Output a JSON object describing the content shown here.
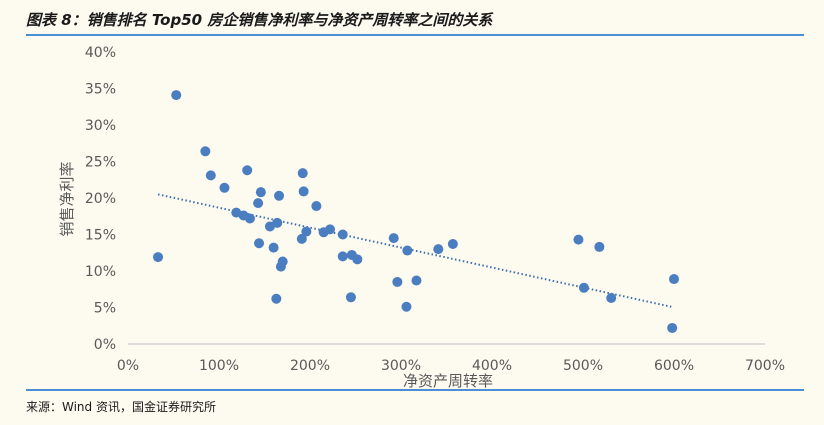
{
  "title": "图表 8：销售排名 Top50 房企销售净利率与净资产周转率之间的关系",
  "source": "来源：Wind 资讯，国金证券研究所",
  "colors": {
    "point": "#4a7ec0",
    "trend": "#3c6fae",
    "rule": "#4a8fd6",
    "axis": "#bfbfbf",
    "text": "#595959"
  },
  "chart_data": {
    "type": "scatter",
    "title": "",
    "xlabel": "净资产周转率",
    "ylabel": "销售净利率",
    "xlim": [
      0,
      700
    ],
    "ylim": [
      0,
      40
    ],
    "x_ticks": [
      "0%",
      "100%",
      "200%",
      "300%",
      "400%",
      "500%",
      "600%",
      "700%"
    ],
    "y_ticks": [
      "0%",
      "5%",
      "10%",
      "15%",
      "20%",
      "25%",
      "30%",
      "35%",
      "40%"
    ],
    "grid": false,
    "trendline": {
      "type": "linear",
      "start": [
        33,
        20.5
      ],
      "end": [
        597,
        5.1
      ],
      "style": "dotted"
    },
    "points": [
      [
        33,
        11.9
      ],
      [
        53,
        34.1
      ],
      [
        85,
        26.4
      ],
      [
        91,
        23.1
      ],
      [
        106,
        21.4
      ],
      [
        119,
        18.0
      ],
      [
        127,
        17.6
      ],
      [
        131,
        23.8
      ],
      [
        134,
        17.2
      ],
      [
        143,
        19.3
      ],
      [
        144,
        13.8
      ],
      [
        146,
        20.8
      ],
      [
        156,
        16.1
      ],
      [
        160,
        13.2
      ],
      [
        163,
        6.2
      ],
      [
        164,
        16.6
      ],
      [
        166,
        20.3
      ],
      [
        168,
        10.6
      ],
      [
        170,
        11.3
      ],
      [
        191,
        14.4
      ],
      [
        192,
        23.4
      ],
      [
        193,
        20.9
      ],
      [
        196,
        15.4
      ],
      [
        207,
        18.9
      ],
      [
        215,
        15.3
      ],
      [
        222,
        15.7
      ],
      [
        236,
        15.0
      ],
      [
        236,
        12.0
      ],
      [
        245,
        6.4
      ],
      [
        246,
        12.2
      ],
      [
        252,
        11.6
      ],
      [
        292,
        14.5
      ],
      [
        296,
        8.5
      ],
      [
        306,
        5.1
      ],
      [
        307,
        12.8
      ],
      [
        317,
        8.7
      ],
      [
        341,
        13.0
      ],
      [
        357,
        13.7
      ],
      [
        495,
        14.3
      ],
      [
        501,
        7.7
      ],
      [
        518,
        13.3
      ],
      [
        531,
        6.3
      ],
      [
        598,
        2.2
      ],
      [
        600,
        8.9
      ]
    ]
  }
}
